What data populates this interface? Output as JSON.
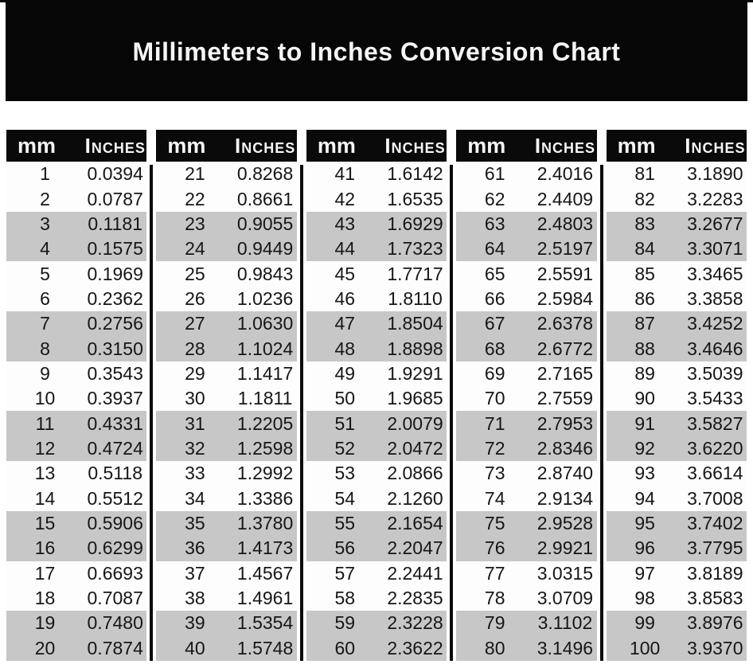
{
  "chart_data": {
    "type": "table",
    "title": "Millimeters to Inches Conversion Chart",
    "column_headers": {
      "mm": "mm",
      "inches": "Inches"
    },
    "layout": {
      "panels": 5,
      "rows_per_panel": 20,
      "stripe_pattern": "two-row alternating"
    },
    "tables": [
      {
        "headers": {
          "mm": "mm",
          "inches": "Inches"
        },
        "rows": [
          {
            "mm": "1",
            "in": "0.0394"
          },
          {
            "mm": "2",
            "in": "0.0787"
          },
          {
            "mm": "3",
            "in": "0.1181"
          },
          {
            "mm": "4",
            "in": "0.1575"
          },
          {
            "mm": "5",
            "in": "0.1969"
          },
          {
            "mm": "6",
            "in": "0.2362"
          },
          {
            "mm": "7",
            "in": "0.2756"
          },
          {
            "mm": "8",
            "in": "0.3150"
          },
          {
            "mm": "9",
            "in": "0.3543"
          },
          {
            "mm": "10",
            "in": "0.3937"
          },
          {
            "mm": "11",
            "in": "0.4331"
          },
          {
            "mm": "12",
            "in": "0.4724"
          },
          {
            "mm": "13",
            "in": "0.5118"
          },
          {
            "mm": "14",
            "in": "0.5512"
          },
          {
            "mm": "15",
            "in": "0.5906"
          },
          {
            "mm": "16",
            "in": "0.6299"
          },
          {
            "mm": "17",
            "in": "0.6693"
          },
          {
            "mm": "18",
            "in": "0.7087"
          },
          {
            "mm": "19",
            "in": "0.7480"
          },
          {
            "mm": "20",
            "in": "0.7874"
          }
        ]
      },
      {
        "headers": {
          "mm": "mm",
          "inches": "Inches"
        },
        "rows": [
          {
            "mm": "21",
            "in": "0.8268"
          },
          {
            "mm": "22",
            "in": "0.8661"
          },
          {
            "mm": "23",
            "in": "0.9055"
          },
          {
            "mm": "24",
            "in": "0.9449"
          },
          {
            "mm": "25",
            "in": "0.9843"
          },
          {
            "mm": "26",
            "in": "1.0236"
          },
          {
            "mm": "27",
            "in": "1.0630"
          },
          {
            "mm": "28",
            "in": "1.1024"
          },
          {
            "mm": "29",
            "in": "1.1417"
          },
          {
            "mm": "30",
            "in": "1.1811"
          },
          {
            "mm": "31",
            "in": "1.2205"
          },
          {
            "mm": "32",
            "in": "1.2598"
          },
          {
            "mm": "33",
            "in": "1.2992"
          },
          {
            "mm": "34",
            "in": "1.3386"
          },
          {
            "mm": "35",
            "in": "1.3780"
          },
          {
            "mm": "36",
            "in": "1.4173"
          },
          {
            "mm": "37",
            "in": "1.4567"
          },
          {
            "mm": "38",
            "in": "1.4961"
          },
          {
            "mm": "39",
            "in": "1.5354"
          },
          {
            "mm": "40",
            "in": "1.5748"
          }
        ]
      },
      {
        "headers": {
          "mm": "mm",
          "inches": "Inches"
        },
        "rows": [
          {
            "mm": "41",
            "in": "1.6142"
          },
          {
            "mm": "42",
            "in": "1.6535"
          },
          {
            "mm": "43",
            "in": "1.6929"
          },
          {
            "mm": "44",
            "in": "1.7323"
          },
          {
            "mm": "45",
            "in": "1.7717"
          },
          {
            "mm": "46",
            "in": "1.8110"
          },
          {
            "mm": "47",
            "in": "1.8504"
          },
          {
            "mm": "48",
            "in": "1.8898"
          },
          {
            "mm": "49",
            "in": "1.9291"
          },
          {
            "mm": "50",
            "in": "1.9685"
          },
          {
            "mm": "51",
            "in": "2.0079"
          },
          {
            "mm": "52",
            "in": "2.0472"
          },
          {
            "mm": "53",
            "in": "2.0866"
          },
          {
            "mm": "54",
            "in": "2.1260"
          },
          {
            "mm": "55",
            "in": "2.1654"
          },
          {
            "mm": "56",
            "in": "2.2047"
          },
          {
            "mm": "57",
            "in": "2.2441"
          },
          {
            "mm": "58",
            "in": "2.2835"
          },
          {
            "mm": "59",
            "in": "2.3228"
          },
          {
            "mm": "60",
            "in": "2.3622"
          }
        ]
      },
      {
        "headers": {
          "mm": "mm",
          "inches": "Inches"
        },
        "rows": [
          {
            "mm": "61",
            "in": "2.4016"
          },
          {
            "mm": "62",
            "in": "2.4409"
          },
          {
            "mm": "63",
            "in": "2.4803"
          },
          {
            "mm": "64",
            "in": "2.5197"
          },
          {
            "mm": "65",
            "in": "2.5591"
          },
          {
            "mm": "66",
            "in": "2.5984"
          },
          {
            "mm": "67",
            "in": "2.6378"
          },
          {
            "mm": "68",
            "in": "2.6772"
          },
          {
            "mm": "69",
            "in": "2.7165"
          },
          {
            "mm": "70",
            "in": "2.7559"
          },
          {
            "mm": "71",
            "in": "2.7953"
          },
          {
            "mm": "72",
            "in": "2.8346"
          },
          {
            "mm": "73",
            "in": "2.8740"
          },
          {
            "mm": "74",
            "in": "2.9134"
          },
          {
            "mm": "75",
            "in": "2.9528"
          },
          {
            "mm": "76",
            "in": "2.9921"
          },
          {
            "mm": "77",
            "in": "3.0315"
          },
          {
            "mm": "78",
            "in": "3.0709"
          },
          {
            "mm": "79",
            "in": "3.1102"
          },
          {
            "mm": "80",
            "in": "3.1496"
          }
        ]
      },
      {
        "headers": {
          "mm": "mm",
          "inches": "Inches"
        },
        "rows": [
          {
            "mm": "81",
            "in": "3.1890"
          },
          {
            "mm": "82",
            "in": "3.2283"
          },
          {
            "mm": "83",
            "in": "3.2677"
          },
          {
            "mm": "84",
            "in": "3.3071"
          },
          {
            "mm": "85",
            "in": "3.3465"
          },
          {
            "mm": "86",
            "in": "3.3858"
          },
          {
            "mm": "87",
            "in": "3.4252"
          },
          {
            "mm": "88",
            "in": "3.4646"
          },
          {
            "mm": "89",
            "in": "3.5039"
          },
          {
            "mm": "90",
            "in": "3.5433"
          },
          {
            "mm": "91",
            "in": "3.5827"
          },
          {
            "mm": "92",
            "in": "3.6220"
          },
          {
            "mm": "93",
            "in": "3.6614"
          },
          {
            "mm": "94",
            "in": "3.7008"
          },
          {
            "mm": "95",
            "in": "3.7402"
          },
          {
            "mm": "96",
            "in": "3.7795"
          },
          {
            "mm": "97",
            "in": "3.8189"
          },
          {
            "mm": "98",
            "in": "3.8583"
          },
          {
            "mm": "99",
            "in": "3.8976"
          },
          {
            "mm": "100",
            "in": "3.9370"
          }
        ]
      }
    ]
  },
  "colors": {
    "banner_bg": "#060606",
    "header_bg": "#0a0a0a",
    "stripe_row_bg": "#c7c7c7",
    "white_row_bg": "#fdfdfd",
    "header_text": "#f5f5f5",
    "data_text": "#161616"
  }
}
